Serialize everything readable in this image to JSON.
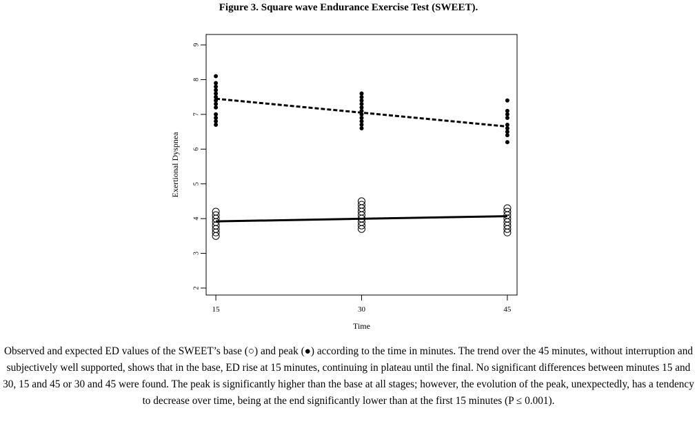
{
  "figure_title": "Figure 3. Square wave Endurance Exercise Test (SWEET).",
  "caption": "Observed and expected ED values of the SWEET’s base (○) and peak (●) according to the time in minutes. The trend over the 45 minutes, without interruption and subjectively well supported, shows that in the base, ED rise at 15 minutes, continuing in plateau until the final. No significant differences between minutes 15 and 30, 15 and 45 or 30 and 45 were found. The peak is significantly higher than the base at all stages; however, the evolution of the peak, unexpectedly, has a tendency to decrease over time, being at the end significantly lower than at the first 15 minutes (P ≤ 0.001).",
  "chart_data": {
    "type": "scatter",
    "title": "",
    "xlabel": "Time",
    "ylabel": "Exertional Dyspnea",
    "x_ticks": [
      15,
      30,
      45
    ],
    "y_ticks": [
      2,
      3,
      4,
      5,
      6,
      7,
      8,
      9
    ],
    "xlim": [
      14,
      46
    ],
    "ylim": [
      1.8,
      9.3
    ],
    "grid": false,
    "series": [
      {
        "marker": "filled-circle",
        "points": [
          {
            "x": 15,
            "values": [
              6.7,
              6.8,
              6.9,
              7.0,
              7.2,
              7.3,
              7.4,
              7.5,
              7.6,
              7.7,
              7.8,
              7.9,
              8.1
            ]
          },
          {
            "x": 30,
            "values": [
              6.6,
              6.7,
              6.8,
              6.9,
              7.0,
              7.1,
              7.2,
              7.3,
              7.4,
              7.5,
              7.6
            ]
          },
          {
            "x": 45,
            "values": [
              6.2,
              6.4,
              6.5,
              6.6,
              6.7,
              6.9,
              7.0,
              7.1,
              7.4
            ]
          }
        ]
      },
      {
        "marker": "open-circle",
        "points": [
          {
            "x": 15,
            "values": [
              3.5,
              3.6,
              3.7,
              3.8,
              3.9,
              4.0,
              4.1,
              4.2
            ]
          },
          {
            "x": 30,
            "values": [
              3.7,
              3.8,
              3.9,
              4.0,
              4.1,
              4.2,
              4.3,
              4.4,
              4.5
            ]
          },
          {
            "x": 45,
            "values": [
              3.6,
              3.7,
              3.8,
              3.9,
              4.0,
              4.1,
              4.2,
              4.3
            ]
          }
        ]
      }
    ],
    "trend_lines": [
      {
        "style": "dashed",
        "x": [
          15,
          45
        ],
        "y": [
          7.45,
          6.65
        ]
      },
      {
        "style": "solid",
        "x": [
          15,
          45
        ],
        "y": [
          3.92,
          4.07
        ]
      }
    ]
  }
}
